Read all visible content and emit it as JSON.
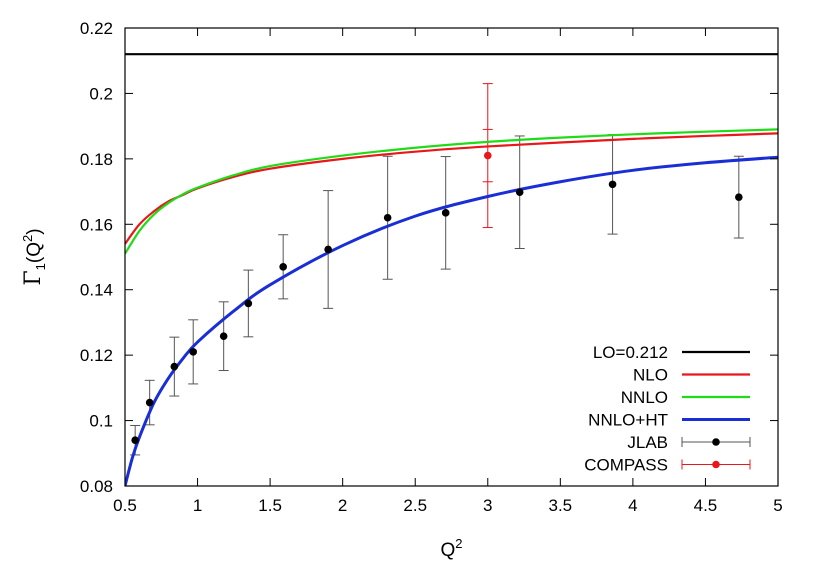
{
  "chart_data": {
    "type": "line",
    "xlabel": "Q",
    "xlabel_sup": "2",
    "ylabel_gamma": "Γ",
    "ylabel_sub": "1",
    "ylabel_paren": "(Q",
    "ylabel_sup": "2",
    "ylabel_close": ")",
    "xlim": [
      0.5,
      5
    ],
    "ylim": [
      0.08,
      0.22
    ],
    "x_ticks": [
      0.5,
      1,
      1.5,
      2,
      2.5,
      3,
      3.5,
      4,
      4.5,
      5
    ],
    "x_tick_labels": [
      "0.5",
      "1",
      "1.5",
      "2",
      "2.5",
      "3",
      "3.5",
      "4",
      "4.5",
      "5"
    ],
    "y_ticks": [
      0.08,
      0.1,
      0.12,
      0.14,
      0.16,
      0.18,
      0.2,
      0.22
    ],
    "y_tick_labels": [
      "0.08",
      "0.1",
      "0.12",
      "0.14",
      "0.16",
      "0.18",
      "0.2",
      "0.22"
    ],
    "grid": false,
    "legend_position": "bottom-right",
    "series": [
      {
        "name": "LO=0.212",
        "kind": "line",
        "color": "#000000",
        "x": [
          0.5,
          5
        ],
        "y": [
          0.212,
          0.212
        ]
      },
      {
        "name": "NLO",
        "kind": "line",
        "color": "#e8171c",
        "x": [
          0.5,
          0.6,
          0.7,
          0.8,
          0.9,
          1.0,
          1.25,
          1.5,
          2.0,
          2.5,
          3.0,
          3.5,
          4.0,
          4.5,
          5.0
        ],
        "y": [
          0.154,
          0.16,
          0.164,
          0.167,
          0.169,
          0.171,
          0.1745,
          0.177,
          0.18,
          0.1822,
          0.1838,
          0.185,
          0.1861,
          0.187,
          0.1878
        ]
      },
      {
        "name": "NNLO",
        "kind": "line",
        "color": "#1fdc16",
        "x": [
          0.5,
          0.6,
          0.7,
          0.8,
          0.9,
          1.0,
          1.25,
          1.5,
          2.0,
          2.5,
          3.0,
          3.5,
          4.0,
          4.5,
          5.0
        ],
        "y": [
          0.151,
          0.158,
          0.163,
          0.1665,
          0.1692,
          0.1712,
          0.175,
          0.1778,
          0.181,
          0.1834,
          0.1852,
          0.1865,
          0.1875,
          0.1883,
          0.189
        ]
      },
      {
        "name": "NNLO+HT",
        "kind": "line",
        "color": "#1a2ed6",
        "x": [
          0.5,
          0.55,
          0.6,
          0.7,
          0.8,
          0.9,
          1.0,
          1.25,
          1.5,
          2.0,
          2.5,
          3.0,
          3.5,
          4.0,
          4.5,
          5.0
        ],
        "y": [
          0.08,
          0.0885,
          0.095,
          0.1055,
          0.113,
          0.119,
          0.124,
          0.1335,
          0.1415,
          0.1535,
          0.1625,
          0.1685,
          0.173,
          0.1765,
          0.1788,
          0.1805
        ]
      },
      {
        "name": "JLAB",
        "kind": "errorbar",
        "color": "#000000",
        "error_color": "#555555",
        "x": [
          0.57,
          0.67,
          0.84,
          0.97,
          1.18,
          1.35,
          1.59,
          1.9,
          2.31,
          2.71,
          3.22,
          3.86,
          4.73
        ],
        "y": [
          0.094,
          0.1055,
          0.1165,
          0.121,
          0.1258,
          0.1358,
          0.147,
          0.1523,
          0.162,
          0.1635,
          0.1698,
          0.1722,
          0.1683
        ],
        "err": [
          0.0045,
          0.0068,
          0.009,
          0.0098,
          0.0105,
          0.0102,
          0.0098,
          0.018,
          0.0188,
          0.0172,
          0.0172,
          0.0152,
          0.0125
        ]
      },
      {
        "name": "COMPASS",
        "kind": "errorbar",
        "color": "#e8171c",
        "error_color": "#e8171c",
        "x": [
          3.0
        ],
        "y": [
          0.181
        ],
        "err": [
          0.022
        ],
        "err_inner": [
          0.008
        ]
      }
    ]
  }
}
